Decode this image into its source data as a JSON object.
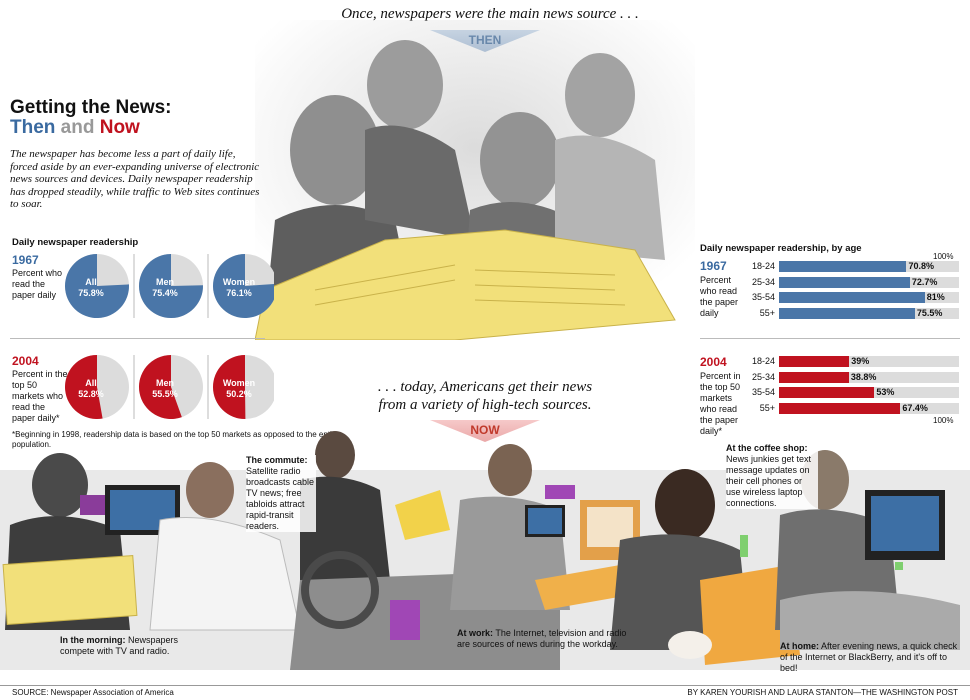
{
  "top_caption": "Once, newspapers were the main news source . . .",
  "then_banner": "THEN",
  "now_caption_line1": ". . . today, Americans get their news",
  "now_caption_line2": "from a variety of high-tech sources.",
  "now_banner": "NOW",
  "title_line1": "Getting the News:",
  "title_then": "Then",
  "title_and": "and",
  "title_now": "Now",
  "intro": "The newspaper has become less a part of daily life, forced aside by an ever-expanding universe of electronic news sources and devices. Daily newspaper readership has dropped steadily, while traffic to Web sites continues to soar.",
  "colors": {
    "blue": "#4a76a8",
    "red": "#c0121f",
    "track": "#dcdcdc"
  },
  "chart_data": [
    {
      "type": "pie",
      "title": "Daily newspaper readership",
      "year": "1967",
      "desc": "Percent who read the paper daily",
      "slices": [
        {
          "label": "All",
          "value": 75.8,
          "display": "75.8%"
        },
        {
          "label": "Men",
          "value": 75.4,
          "display": "75.4%"
        },
        {
          "label": "Women",
          "value": 76.1,
          "display": "76.1%"
        }
      ]
    },
    {
      "type": "pie",
      "year": "2004",
      "desc": "Percent in the top 50 markets who read the paper daily*",
      "footnote": "*Beginning in 1998, readership data is based on the top 50 markets as opposed to the entire population.",
      "slices": [
        {
          "label": "All",
          "value": 52.8,
          "display": "52.8%"
        },
        {
          "label": "Men",
          "value": 55.5,
          "display": "55.5%"
        },
        {
          "label": "Women",
          "value": 50.2,
          "display": "50.2%"
        }
      ]
    },
    {
      "type": "bar",
      "title": "Daily newspaper readership, by age",
      "year": "1967",
      "desc": "Percent who read the paper daily",
      "axis_max_label": "100%",
      "categories": [
        "18-24",
        "25-34",
        "35-54",
        "55+"
      ],
      "values": [
        70.8,
        72.7,
        81,
        75.5
      ],
      "display": [
        "70.8%",
        "72.7%",
        "81%",
        "75.5%"
      ],
      "ylim": [
        0,
        100
      ]
    },
    {
      "type": "bar",
      "year": "2004",
      "desc": "Percent in the top 50 markets who read the paper daily*",
      "axis_max_label": "100%",
      "categories": [
        "18-24",
        "25-34",
        "35-54",
        "55+"
      ],
      "values": [
        39,
        38.8,
        53,
        67.4
      ],
      "display": [
        "39%",
        "38.8%",
        "53%",
        "67.4%"
      ],
      "ylim": [
        0,
        100
      ]
    }
  ],
  "captions": {
    "morning_bold": "In the morning:",
    "morning_text": "Newspapers compete with TV and radio.",
    "commute_bold": "The commute:",
    "commute_text": "Satellite radio broadcasts cable TV news; free tabloids attract rapid-transit readers.",
    "work_bold": "At work:",
    "work_text": "The Internet, television and radio are sources of news during the workday.",
    "coffee_bold": "At the coffee shop:",
    "coffee_text": "News junkies get text message updates on their cell phones or use wireless laptop connections.",
    "home_bold": "At home:",
    "home_text": "After evening news, a quick check of the Internet or BlackBerry, and it's off to bed!"
  },
  "footer": {
    "source": "SOURCE: Newspaper Association of America",
    "credit": "BY KAREN YOURISH AND LAURA STANTON—THE WASHINGTON POST"
  }
}
